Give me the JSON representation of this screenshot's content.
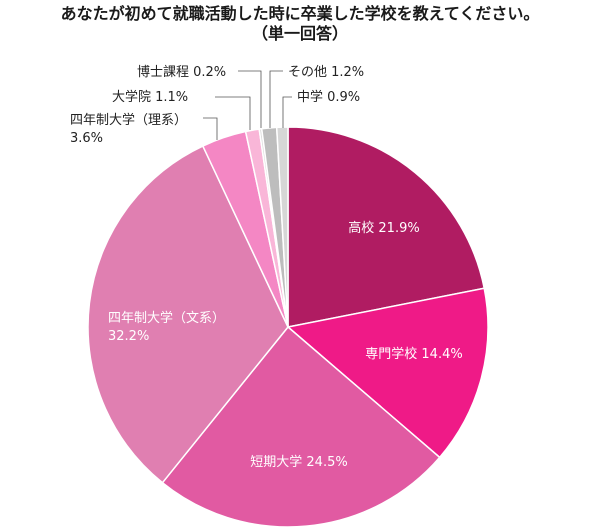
{
  "title_line1": "あなたが初めて就職活動した時に卒業した学校を教えてください。",
  "title_line2": "（単一回答）",
  "chart_data": {
    "type": "pie",
    "start": "12 o'clock",
    "direction": "clockwise",
    "slices": [
      {
        "label": "高校",
        "value": 21.9,
        "value_text": "21.9%",
        "color": "#b01c62",
        "label_color": "#ffffff"
      },
      {
        "label": "専門学校",
        "value": 14.4,
        "value_text": "14.4%",
        "color": "#ef1a87",
        "label_color": "#ffffff"
      },
      {
        "label": "短期大学",
        "value": 24.5,
        "value_text": "24.5%",
        "color": "#e15aa2",
        "label_color": "#ffffff"
      },
      {
        "label": "四年制大学（文系）",
        "value": 32.2,
        "value_text": "32.2%",
        "color": "#e07fb1",
        "label_color": "#ffffff"
      },
      {
        "label": "四年制大学（理系）",
        "value": 3.6,
        "value_text": "3.6%",
        "color": "#f487c4",
        "label_color": "#222222"
      },
      {
        "label": "大学院",
        "value": 1.1,
        "value_text": "1.1%",
        "color": "#f9b6d8",
        "label_color": "#222222"
      },
      {
        "label": "博士課程",
        "value": 0.2,
        "value_text": "0.2%",
        "color": "#dcdcdc",
        "label_color": "#222222"
      },
      {
        "label": "その他",
        "value": 1.2,
        "value_text": "1.2%",
        "color": "#bdbdbd",
        "label_color": "#222222"
      },
      {
        "label": "中学",
        "value": 0.9,
        "value_text": "0.9%",
        "color": "#d6d6d6",
        "label_color": "#222222"
      }
    ]
  }
}
